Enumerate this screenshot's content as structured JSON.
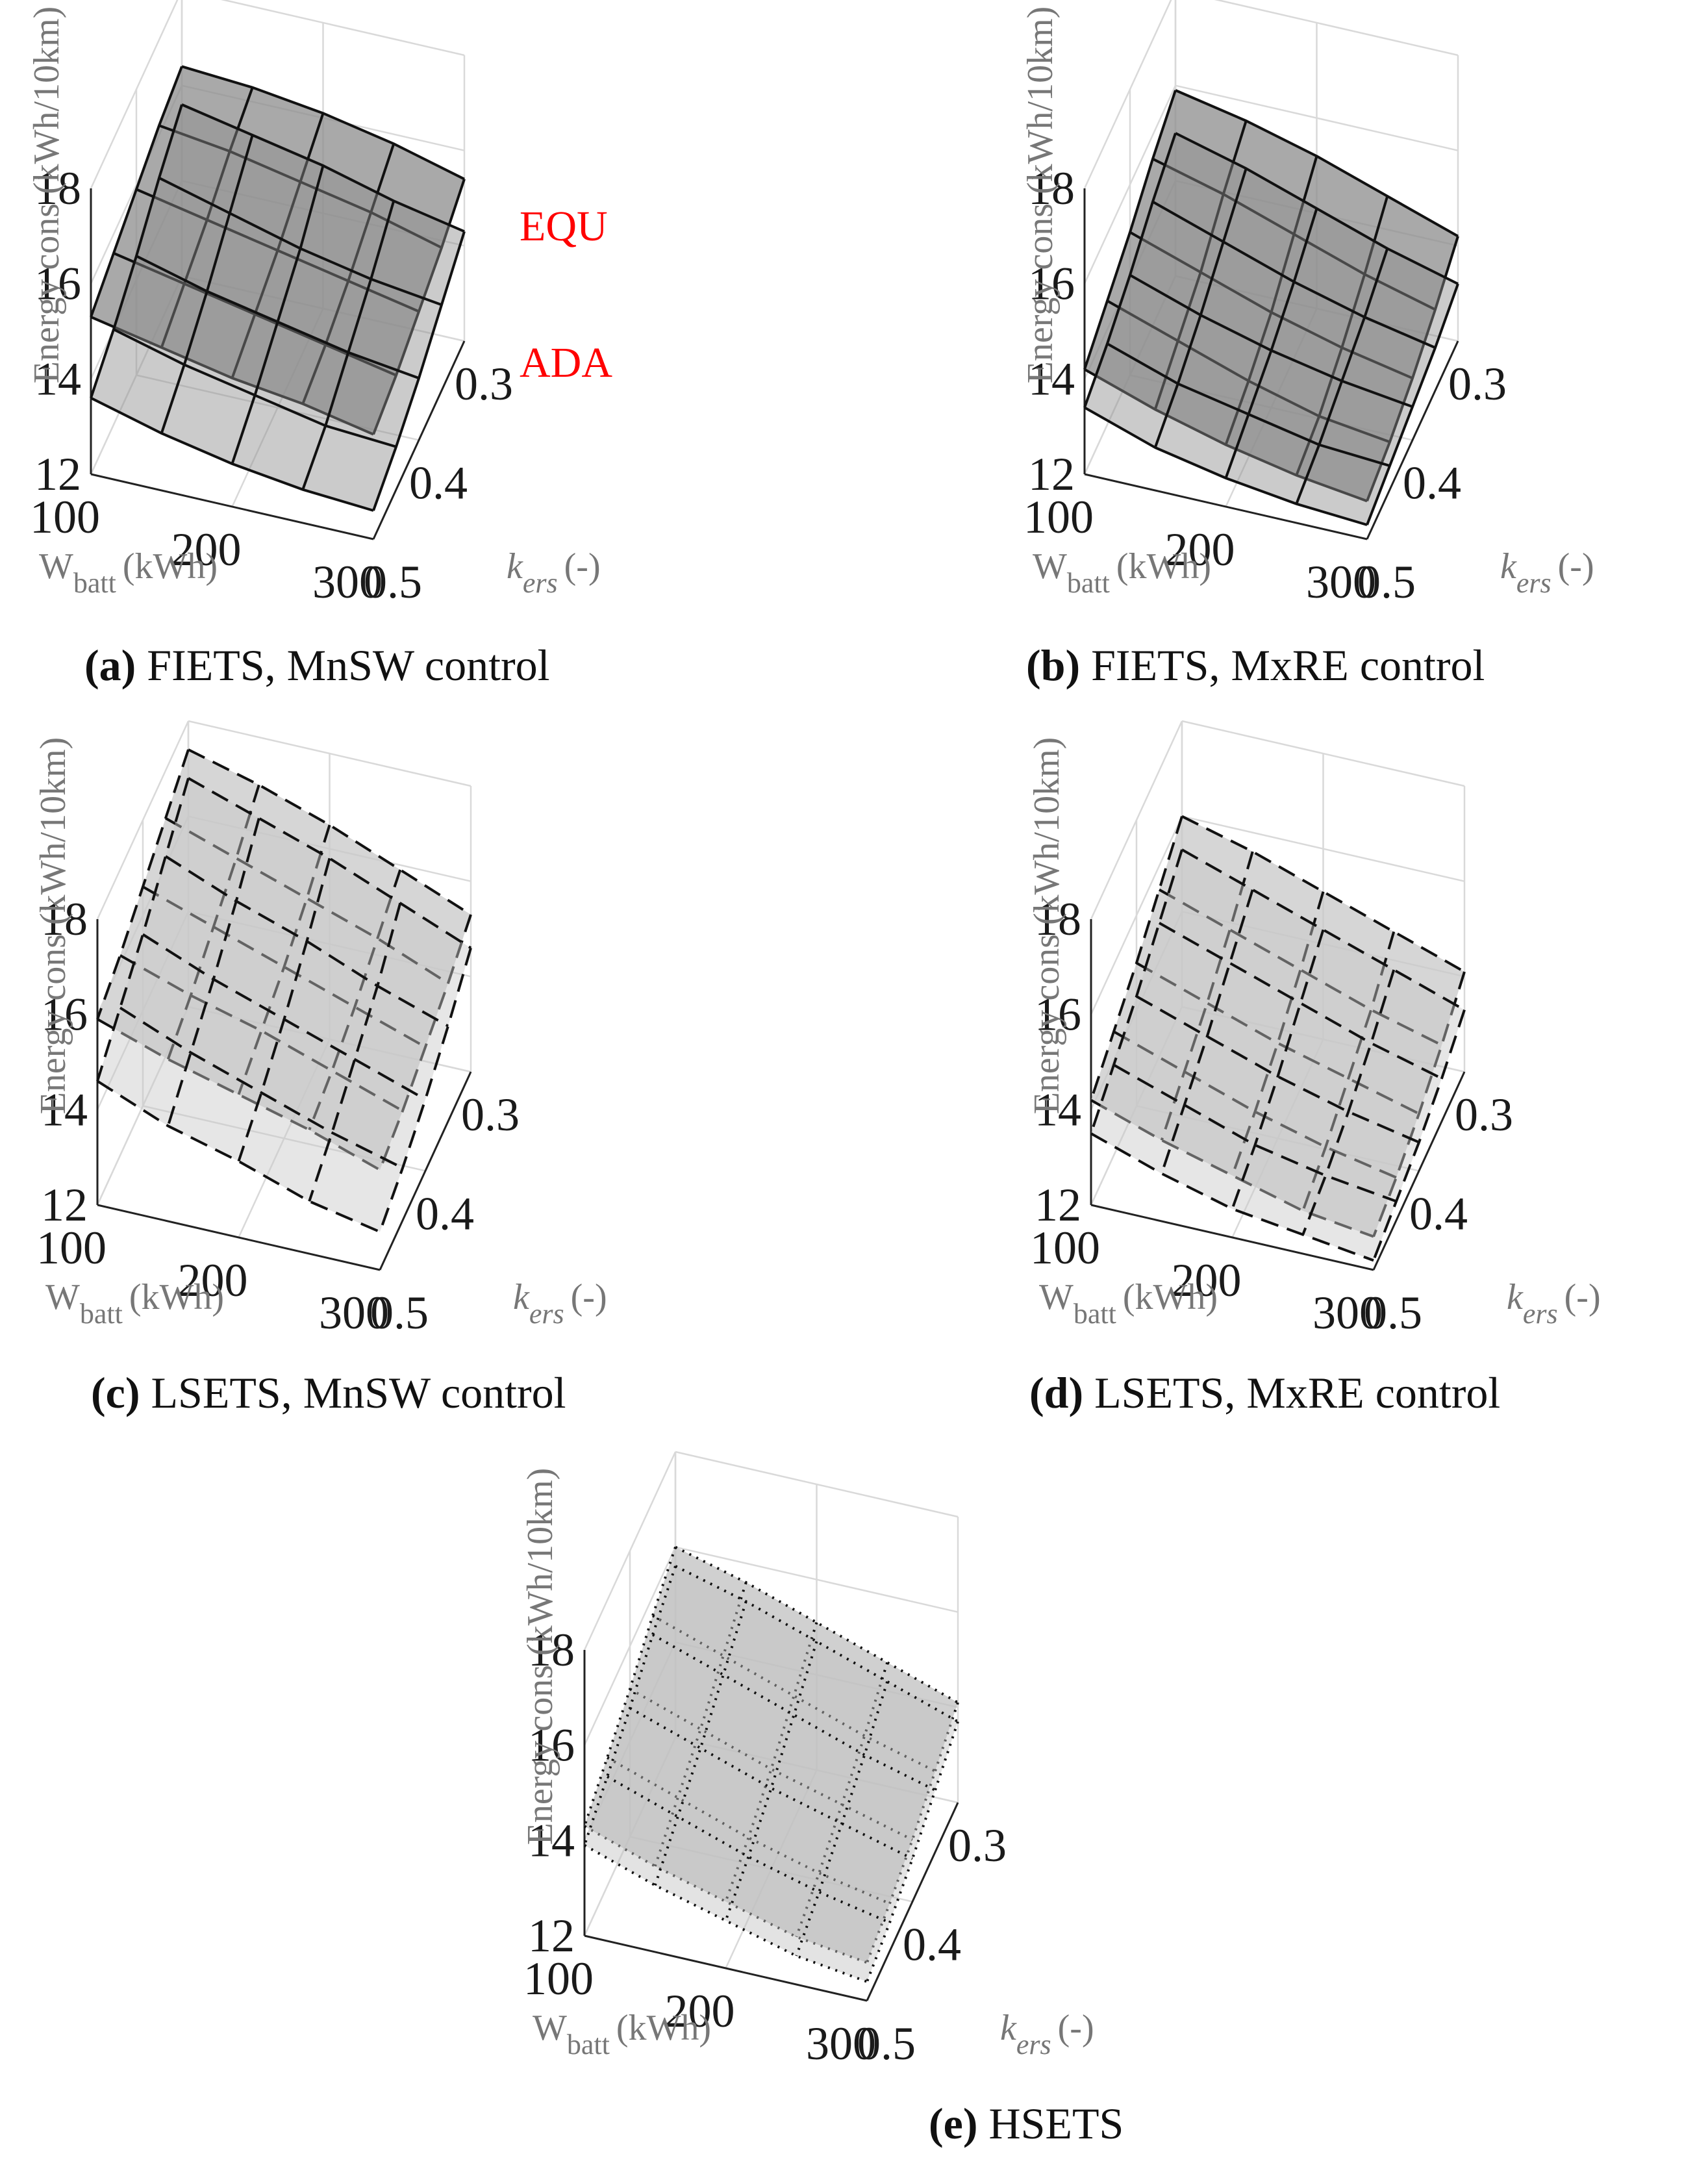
{
  "chart_data": [
    {
      "type": "surface3d",
      "id": "a",
      "caption_letter": "(a)",
      "caption_text": "FIETS, MnSW control",
      "zlabel": "Energy cons (kWh/10km)",
      "xlabel_main": "W",
      "xlabel_sub": "batt",
      "xlabel_unit": "(kWh)",
      "ylabel_main": "k",
      "ylabel_sub": "ers",
      "ylabel_unit": "(-)",
      "x_ticks": [
        "100",
        "200",
        "300"
      ],
      "y_ticks": [
        "0.3",
        "0.4",
        "0.5"
      ],
      "z_ticks": [
        "12",
        "14",
        "16",
        "18"
      ],
      "x_values": [
        100,
        150,
        200,
        250,
        300
      ],
      "y_values": [
        0.3,
        0.35,
        0.4,
        0.45,
        0.5
      ],
      "zlim": [
        12,
        18
      ],
      "line_style": "solid",
      "surface_fill": "#8c8c8c",
      "surfaces": [
        {
          "name": "EQU",
          "z": [
            [
              16.4,
              16.3,
              16.1,
              15.8,
              15.4
            ],
            [
              16.2,
              16.0,
              15.7,
              15.4,
              15.0
            ],
            [
              15.9,
              15.6,
              15.3,
              15.0,
              14.7
            ],
            [
              15.6,
              15.3,
              15.0,
              14.7,
              14.4
            ],
            [
              15.3,
              15.0,
              14.7,
              14.5,
              14.2
            ]
          ]
        },
        {
          "name": "ADA",
          "z": [
            [
              15.6,
              15.3,
              15.0,
              14.6,
              14.3
            ],
            [
              15.1,
              14.7,
              14.3,
              14.0,
              13.8
            ],
            [
              14.5,
              14.1,
              13.8,
              13.5,
              13.3
            ],
            [
              14.0,
              13.6,
              13.3,
              13.0,
              12.9
            ],
            [
              13.6,
              13.2,
              12.9,
              12.7,
              12.6
            ]
          ]
        }
      ],
      "annotations": [
        "EQU",
        "ADA"
      ]
    },
    {
      "type": "surface3d",
      "id": "b",
      "caption_letter": "(b)",
      "caption_text": "FIETS, MxRE control",
      "zlabel": "Energy cons (kWh/10km)",
      "xlabel_main": "W",
      "xlabel_sub": "batt",
      "xlabel_unit": "(kWh)",
      "ylabel_main": "k",
      "ylabel_sub": "ers",
      "ylabel_unit": "(-)",
      "x_ticks": [
        "100",
        "200",
        "300"
      ],
      "y_ticks": [
        "0.3",
        "0.4",
        "0.5"
      ],
      "z_ticks": [
        "12",
        "14",
        "16",
        "18"
      ],
      "x_values": [
        100,
        150,
        200,
        250,
        300
      ],
      "y_values": [
        0.3,
        0.35,
        0.4,
        0.45,
        0.5
      ],
      "zlim": [
        12,
        18
      ],
      "line_style": "solid",
      "surface_fill": "#8c8c8c",
      "surfaces": [
        {
          "name": "EQU",
          "z": [
            [
              15.9,
              15.6,
              15.2,
              14.7,
              14.2
            ],
            [
              15.5,
              15.1,
              14.6,
              14.1,
              13.7
            ],
            [
              15.0,
              14.5,
              14.0,
              13.6,
              13.3
            ],
            [
              14.6,
              14.1,
              13.6,
              13.2,
              13.0
            ],
            [
              14.2,
              13.7,
              13.3,
              13.0,
              12.8
            ]
          ]
        },
        {
          "name": "ADA",
          "z": [
            [
              15.0,
              14.6,
              14.1,
              13.6,
              13.2
            ],
            [
              14.6,
              14.1,
              13.6,
              13.2,
              12.9
            ],
            [
              14.1,
              13.6,
              13.2,
              12.9,
              12.7
            ],
            [
              13.7,
              13.2,
              12.9,
              12.6,
              12.5
            ],
            [
              13.4,
              12.9,
              12.6,
              12.4,
              12.3
            ]
          ]
        }
      ],
      "annotations": []
    },
    {
      "type": "surface3d",
      "id": "c",
      "caption_letter": "(c)",
      "caption_text": "LSETS, MnSW control",
      "zlabel": "Energy cons (kWh/10km)",
      "xlabel_main": "W",
      "xlabel_sub": "batt",
      "xlabel_unit": "(kWh)",
      "ylabel_main": "k",
      "ylabel_sub": "ers",
      "ylabel_unit": "(-)",
      "x_ticks": [
        "100",
        "200",
        "300"
      ],
      "y_ticks": [
        "0.3",
        "0.4",
        "0.5"
      ],
      "z_ticks": [
        "12",
        "14",
        "16",
        "18"
      ],
      "x_values": [
        100,
        150,
        200,
        250,
        300
      ],
      "y_values": [
        0.3,
        0.35,
        0.4,
        0.45,
        0.5
      ],
      "zlim": [
        12,
        18
      ],
      "line_style": "dashed",
      "surface_fill": "#c8c8c8",
      "surfaces": [
        {
          "name": "EQU",
          "z": [
            [
              17.4,
              17.0,
              16.5,
              15.9,
              15.3
            ],
            [
              17.0,
              16.5,
              16.0,
              15.5,
              14.9
            ],
            [
              16.6,
              16.1,
              15.6,
              15.1,
              14.6
            ],
            [
              16.2,
              15.7,
              15.3,
              14.8,
              14.3
            ],
            [
              15.9,
              15.4,
              15.0,
              14.6,
              14.1
            ]
          ]
        },
        {
          "name": "ADA",
          "z": [
            [
              16.8,
              16.3,
              15.8,
              15.2,
              14.6
            ],
            [
              16.2,
              15.6,
              15.1,
              14.5,
              14.0
            ],
            [
              15.6,
              15.0,
              14.5,
              14.0,
              13.5
            ],
            [
              15.1,
              14.5,
              14.0,
              13.5,
              13.1
            ],
            [
              14.6,
              14.0,
              13.6,
              13.1,
              12.8
            ]
          ]
        }
      ],
      "annotations": []
    },
    {
      "type": "surface3d",
      "id": "d",
      "caption_letter": "(d)",
      "caption_text": "LSETS, MxRE control",
      "zlabel": "Energy cons (kWh/10km)",
      "xlabel_main": "W",
      "xlabel_sub": "batt",
      "xlabel_unit": "(kWh)",
      "ylabel_main": "k",
      "ylabel_sub": "ers",
      "ylabel_unit": "(-)",
      "x_ticks": [
        "100",
        "200",
        "300"
      ],
      "y_ticks": [
        "0.3",
        "0.4",
        "0.5"
      ],
      "z_ticks": [
        "12",
        "14",
        "16",
        "18"
      ],
      "x_values": [
        100,
        150,
        200,
        250,
        300
      ],
      "y_values": [
        0.3,
        0.35,
        0.4,
        0.45,
        0.5
      ],
      "zlim": [
        12,
        18
      ],
      "line_style": "dashed",
      "surface_fill": "#c8c8c8",
      "surfaces": [
        {
          "name": "EQU",
          "z": [
            [
              16.0,
              15.6,
              15.1,
              14.6,
              14.1
            ],
            [
              15.5,
              15.0,
              14.5,
              14.0,
              13.6
            ],
            [
              15.0,
              14.5,
              14.0,
              13.6,
              13.2
            ],
            [
              14.6,
              14.1,
              13.6,
              13.2,
              12.9
            ],
            [
              14.2,
              13.7,
              13.3,
              12.9,
              12.7
            ]
          ]
        },
        {
          "name": "ADA",
          "z": [
            [
              15.3,
              14.8,
              14.3,
              13.8,
              13.3
            ],
            [
              14.8,
              14.3,
              13.8,
              13.3,
              12.9
            ],
            [
              14.3,
              13.8,
              13.3,
              12.9,
              12.6
            ],
            [
              13.9,
              13.4,
              12.9,
              12.6,
              12.4
            ],
            [
              13.5,
              13.0,
              12.6,
              12.4,
              12.2
            ]
          ]
        }
      ],
      "annotations": []
    },
    {
      "type": "surface3d",
      "id": "e",
      "caption_letter": "(e)",
      "caption_text": "HSETS",
      "zlabel": "Energy cons (kWh/10km)",
      "xlabel_main": "W",
      "xlabel_sub": "batt",
      "xlabel_unit": "(kWh)",
      "ylabel_main": "k",
      "ylabel_sub": "ers",
      "ylabel_unit": "(-)",
      "x_ticks": [
        "100",
        "200",
        "300"
      ],
      "y_ticks": [
        "0.3",
        "0.4",
        "0.5"
      ],
      "z_ticks": [
        "12",
        "14",
        "16",
        "18"
      ],
      "x_values": [
        100,
        150,
        200,
        250,
        300
      ],
      "y_values": [
        0.3,
        0.35,
        0.4,
        0.45,
        0.5
      ],
      "zlim": [
        12,
        18
      ],
      "line_style": "dotted",
      "surface_fill": "#c0c0c0",
      "surfaces": [
        {
          "name": "EQU",
          "z": [
            [
              16.0,
              15.6,
              15.1,
              14.6,
              14.1
            ],
            [
              15.6,
              15.1,
              14.6,
              14.1,
              13.7
            ],
            [
              15.1,
              14.6,
              14.1,
              13.7,
              13.3
            ],
            [
              14.7,
              14.2,
              13.7,
              13.3,
              13.0
            ],
            [
              14.3,
              13.8,
              13.4,
              13.0,
              12.8
            ]
          ]
        },
        {
          "name": "ADA",
          "z": [
            [
              15.6,
              15.2,
              14.7,
              14.2,
              13.7
            ],
            [
              15.2,
              14.7,
              14.2,
              13.7,
              13.3
            ],
            [
              14.7,
              14.2,
              13.7,
              13.3,
              12.9
            ],
            [
              14.3,
              13.8,
              13.3,
              12.9,
              12.6
            ],
            [
              13.9,
              13.4,
              13.0,
              12.6,
              12.4
            ]
          ]
        }
      ],
      "annotations": []
    }
  ]
}
